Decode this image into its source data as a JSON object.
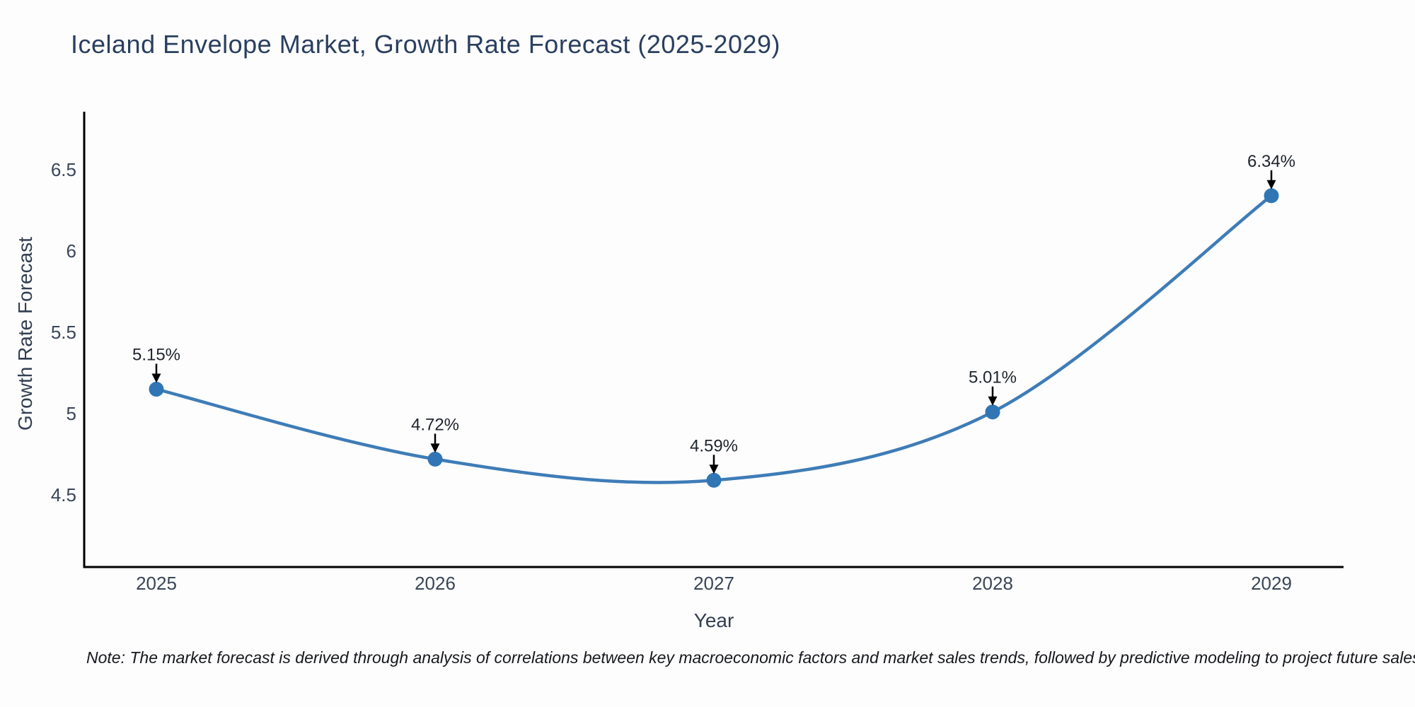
{
  "chart_data": {
    "type": "line",
    "title": "Iceland Envelope Market, Growth Rate Forecast (2025-2029)",
    "xlabel": "Year",
    "ylabel": "Growth Rate Forecast",
    "x": [
      2025,
      2026,
      2027,
      2028,
      2029
    ],
    "series": [
      {
        "name": "Growth Rate Forecast",
        "values": [
          5.15,
          4.72,
          4.59,
          5.01,
          6.34
        ],
        "point_labels": [
          "5.15%",
          "4.72%",
          "4.59%",
          "5.01%",
          "6.34%"
        ]
      }
    ],
    "yticks": [
      4.5,
      5,
      5.5,
      6,
      6.5
    ],
    "ylim": [
      4.05,
      6.9
    ],
    "grid": false,
    "legend": false,
    "line_shape": "spline",
    "annotation_style": "value label above point with black down arrow",
    "colors": {
      "line": "#3e7cb7",
      "marker": "#3176b4",
      "axis": "#000000",
      "title_text": "#2a3f5f",
      "tick_text": "#3a4657",
      "annotation_text": "#1f242c",
      "background": "#fdfdfd"
    },
    "note": "Note: The market forecast is derived through analysis of correlations between key macroeconomic factors and market sales trends, followed by predictive modeling to project future sales"
  }
}
